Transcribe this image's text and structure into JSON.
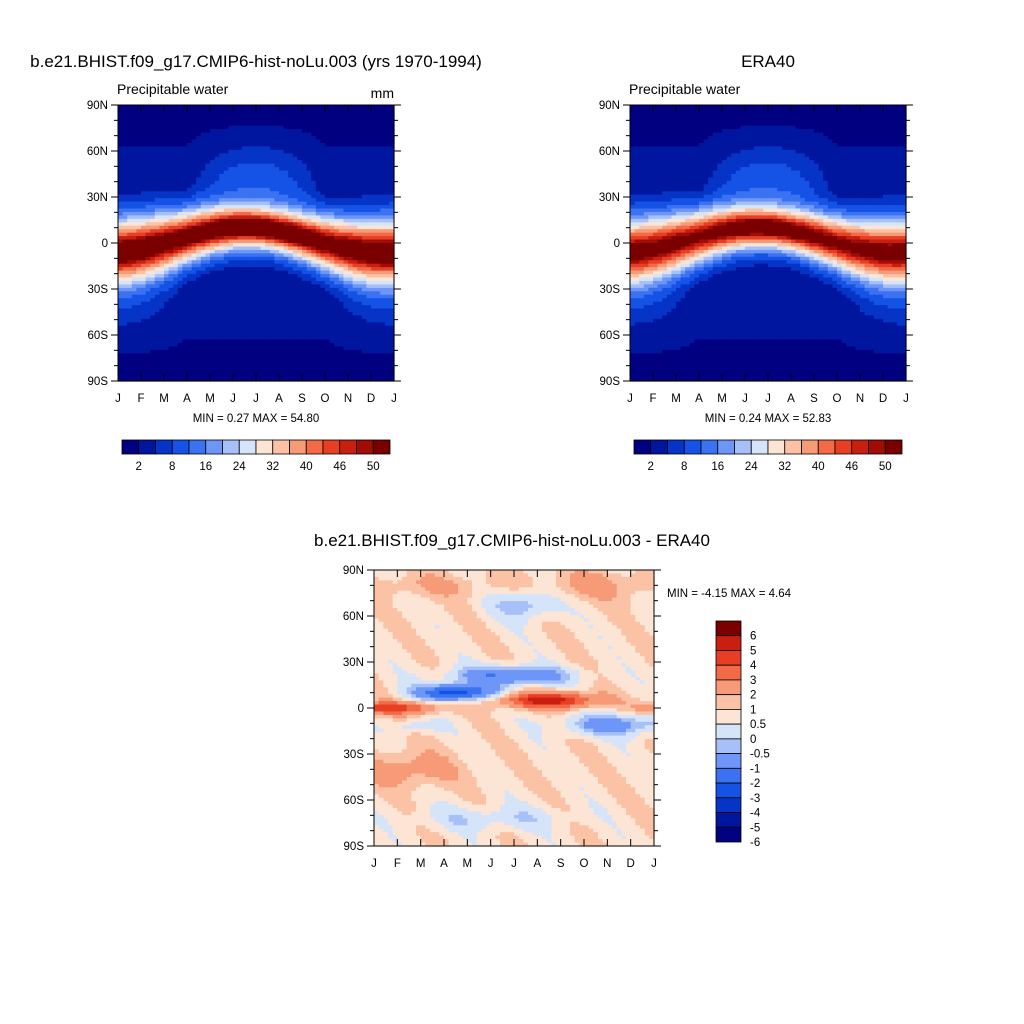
{
  "palette_abs": [
    "#000080",
    "#00169f",
    "#0534c6",
    "#1453e6",
    "#3a72f2",
    "#6d96f8",
    "#a7c0f8",
    "#d5e4f9",
    "#fde5d6",
    "#fbc2a5",
    "#f79a77",
    "#f26a48",
    "#e83e23",
    "#c91f10",
    "#a00c06",
    "#7a0000"
  ],
  "palette_diff": [
    "#000080",
    "#00169f",
    "#0534c6",
    "#1453e6",
    "#3a72f2",
    "#6d96f8",
    "#a7c0f8",
    "#d5e4f9",
    "#fde5d6",
    "#fbc2a5",
    "#f79a77",
    "#f26a48",
    "#e83e23",
    "#c91f10",
    "#7a0000"
  ],
  "chart_data": [
    {
      "type": "heatmap",
      "title": "b.e21.BHIST.f09_g17.CMIP6-hist-noLu.003 (yrs 1970-1994)",
      "subtitle_left": "Precipitable water",
      "subtitle_right": "mm",
      "x_ticks": [
        "J",
        "F",
        "M",
        "A",
        "M",
        "J",
        "J",
        "A",
        "S",
        "O",
        "N",
        "D",
        "J"
      ],
      "y_ticks": [
        "90N",
        "60N",
        "30N",
        "0",
        "30S",
        "60S",
        "90S"
      ],
      "stats": "MIN =   0.27 MAX =  54.80",
      "colorbar_labels": [
        "2",
        "8",
        "16",
        "24",
        "32",
        "40",
        "46",
        "50"
      ],
      "colorbar_levels": [
        2,
        5,
        8,
        12,
        16,
        20,
        24,
        28,
        32,
        36,
        40,
        43,
        46,
        48,
        50
      ],
      "min": 0.27,
      "max": 54.8,
      "field": "absolute",
      "itcz_peak_mm": 54
    },
    {
      "type": "heatmap",
      "title": "ERA40",
      "subtitle_left": "Precipitable water",
      "x_ticks": [
        "J",
        "F",
        "M",
        "A",
        "M",
        "J",
        "J",
        "A",
        "S",
        "O",
        "N",
        "D",
        "J"
      ],
      "y_ticks": [
        "90N",
        "60N",
        "30N",
        "0",
        "30S",
        "60S",
        "90S"
      ],
      "stats": "MIN =   0.24 MAX =  52.83",
      "colorbar_labels": [
        "2",
        "8",
        "16",
        "24",
        "32",
        "40",
        "46",
        "50"
      ],
      "colorbar_levels": [
        2,
        5,
        8,
        12,
        16,
        20,
        24,
        28,
        32,
        36,
        40,
        43,
        46,
        48,
        50
      ],
      "min": 0.24,
      "max": 52.83,
      "field": "absolute",
      "itcz_peak_mm": 51.5
    },
    {
      "type": "heatmap",
      "title": "b.e21.BHIST.f09_g17.CMIP6-hist-noLu.003 - ERA40",
      "x_ticks": [
        "J",
        "F",
        "M",
        "A",
        "M",
        "J",
        "J",
        "A",
        "S",
        "O",
        "N",
        "D",
        "J"
      ],
      "y_ticks": [
        "90N",
        "60N",
        "30N",
        "0",
        "30S",
        "60S",
        "90S"
      ],
      "stats": "MIN =  -4.15 MAX =   4.64",
      "colorbar_labels": [
        "6",
        "5",
        "4",
        "3",
        "2",
        "1",
        "0.5",
        "0",
        "-0.5",
        "-1",
        "-2",
        "-3",
        "-4",
        "-5",
        "-6"
      ],
      "colorbar_levels": [
        -6,
        -5,
        -4,
        -3,
        -2,
        -1,
        -0.5,
        0,
        0.5,
        1,
        2,
        3,
        4,
        5,
        6
      ],
      "min": -4.15,
      "max": 4.64,
      "field": "difference"
    }
  ]
}
